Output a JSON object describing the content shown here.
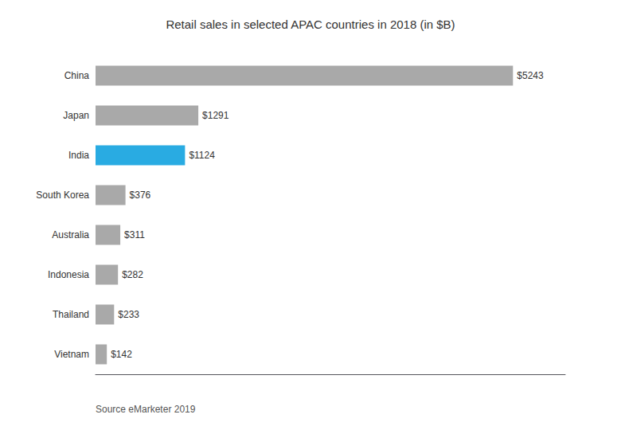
{
  "chart_data": {
    "type": "bar",
    "orientation": "horizontal",
    "title": "Retail sales in selected APAC countries in 2018 (in $B)",
    "categories": [
      "China",
      "Japan",
      "India",
      "South Korea",
      "Australia",
      "Indonesia",
      "Thailand",
      "Vietnam"
    ],
    "values": [
      5243,
      1291,
      1124,
      376,
      311,
      282,
      233,
      142
    ],
    "value_labels": [
      "$5243",
      "$1291",
      "$1124",
      "$376",
      "$311",
      "$282",
      "$233",
      "$142"
    ],
    "colors": [
      "#a9a9a9",
      "#a9a9a9",
      "#29abe2",
      "#a9a9a9",
      "#a9a9a9",
      "#a9a9a9",
      "#a9a9a9",
      "#a9a9a9"
    ],
    "xlim": [
      0,
      5900
    ],
    "data_labels": true,
    "tick_labels": "y",
    "grid": false,
    "annotation": "Source eMarketer 2019"
  }
}
